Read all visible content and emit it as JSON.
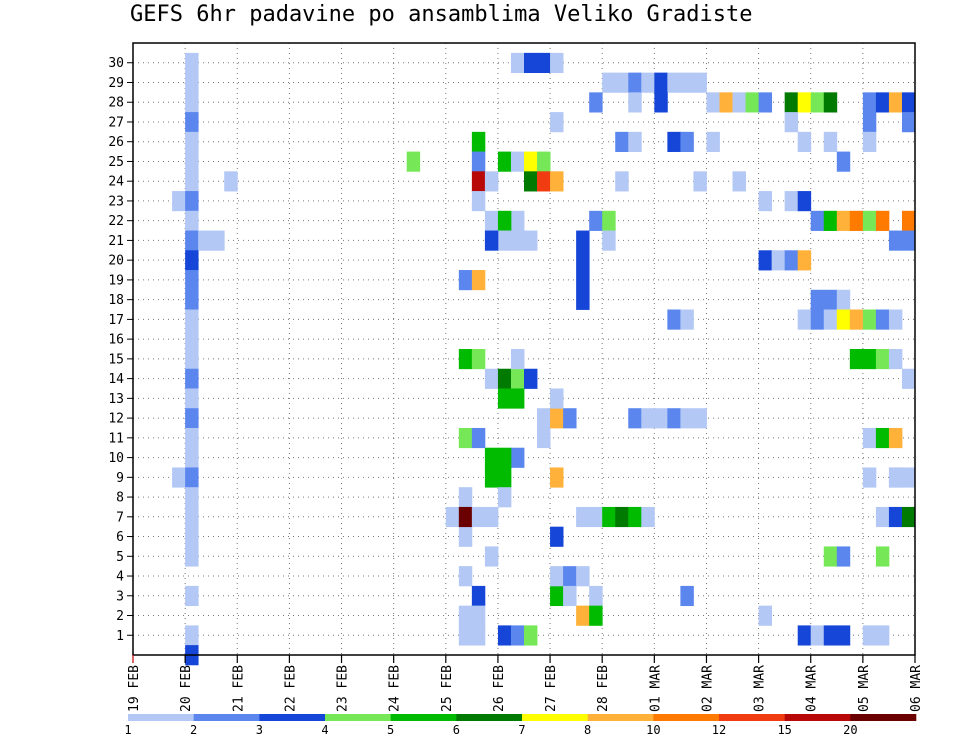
{
  "chart_data": {
    "type": "heatmap",
    "title": "GEFS 6hr padavine po ansamblima Veliko Gradiste",
    "xlabel": "",
    "ylabel": "",
    "x_ticks": [
      "19 FEB",
      "20 FEB",
      "21 FEB",
      "22 FEB",
      "23 FEB",
      "24 FEB",
      "25 FEB",
      "26 FEB",
      "27 FEB",
      "28 FEB",
      "01 MAR",
      "02 MAR",
      "03 MAR",
      "04 MAR",
      "05 MAR",
      "06 MAR"
    ],
    "y_ticks": [
      "1",
      "2",
      "3",
      "4",
      "5",
      "6",
      "7",
      "8",
      "9",
      "10",
      "11",
      "12",
      "13",
      "14",
      "15",
      "16",
      "17",
      "18",
      "19",
      "20",
      "21",
      "22",
      "23",
      "24",
      "25",
      "26",
      "27",
      "28",
      "29",
      "30"
    ],
    "time_steps_per_day": 4,
    "n_steps": 60,
    "n_members": 30,
    "grid": true,
    "legend": {
      "position": "bottom",
      "levels": [
        "1",
        "2",
        "3",
        "4",
        "5",
        "6",
        "7",
        "8",
        "10",
        "12",
        "15",
        "20"
      ],
      "colors": [
        "#b3c8f5",
        "#5a86ee",
        "#1646d8",
        "#76e858",
        "#00bb00",
        "#007a00",
        "#ffff00",
        "#ffb13a",
        "#ff7a00",
        "#f03c10",
        "#b80808",
        "#6b0000"
      ]
    },
    "cells": [
      [
        4,
        30,
        0
      ],
      [
        4,
        29,
        0
      ],
      [
        4,
        28,
        0
      ],
      [
        4,
        27,
        1
      ],
      [
        4,
        26,
        0
      ],
      [
        4,
        25,
        0
      ],
      [
        4,
        24,
        0
      ],
      [
        3,
        23,
        0
      ],
      [
        4,
        23,
        1
      ],
      [
        4,
        22,
        0
      ],
      [
        4,
        21,
        1
      ],
      [
        5,
        21,
        0
      ],
      [
        6,
        21,
        0
      ],
      [
        4,
        20,
        2
      ],
      [
        4,
        19,
        1
      ],
      [
        4,
        18,
        1
      ],
      [
        4,
        17,
        0
      ],
      [
        4,
        16,
        0
      ],
      [
        4,
        15,
        0
      ],
      [
        4,
        14,
        1
      ],
      [
        4,
        13,
        0
      ],
      [
        4,
        12,
        1
      ],
      [
        4,
        11,
        0
      ],
      [
        4,
        10,
        0
      ],
      [
        3,
        9,
        0
      ],
      [
        4,
        9,
        1
      ],
      [
        4,
        8,
        0
      ],
      [
        4,
        7,
        0
      ],
      [
        4,
        6,
        0
      ],
      [
        4,
        5,
        0
      ],
      [
        4,
        3,
        0
      ],
      [
        4,
        1,
        0
      ],
      [
        4,
        0,
        2
      ],
      [
        7,
        24,
        0
      ],
      [
        21,
        25,
        3
      ],
      [
        29,
        22,
        0
      ],
      [
        29,
        21,
        0
      ],
      [
        30,
        21,
        0
      ],
      [
        34,
        21,
        2
      ],
      [
        34,
        20,
        2
      ],
      [
        34,
        19,
        2
      ],
      [
        34,
        18,
        2
      ],
      [
        26,
        1,
        0
      ],
      [
        28,
        1,
        2
      ],
      [
        29,
        1,
        1
      ],
      [
        30,
        1,
        3
      ],
      [
        25,
        1,
        0
      ],
      [
        25,
        2,
        0
      ],
      [
        25,
        4,
        0
      ],
      [
        25,
        6,
        0
      ],
      [
        25,
        7,
        0
      ],
      [
        25,
        8,
        0
      ],
      [
        27,
        5,
        0
      ],
      [
        24,
        7,
        0
      ],
      [
        25,
        7,
        11
      ],
      [
        26,
        7,
        0
      ],
      [
        26,
        26,
        4
      ],
      [
        26,
        25,
        1
      ],
      [
        26,
        24,
        10
      ],
      [
        27,
        24,
        0
      ],
      [
        26,
        23,
        0
      ],
      [
        27,
        22,
        0
      ],
      [
        28,
        22,
        4
      ],
      [
        28,
        21,
        0
      ],
      [
        27,
        21,
        2
      ],
      [
        25,
        19,
        1
      ],
      [
        26,
        19,
        7
      ],
      [
        25,
        15,
        4
      ],
      [
        26,
        15,
        3
      ],
      [
        27,
        14,
        0
      ],
      [
        28,
        14,
        5
      ],
      [
        29,
        14,
        3
      ],
      [
        30,
        14,
        2
      ],
      [
        29,
        15,
        0
      ],
      [
        28,
        13,
        4
      ],
      [
        29,
        13,
        4
      ],
      [
        29,
        10,
        1
      ],
      [
        27,
        10,
        4
      ],
      [
        28,
        10,
        4
      ],
      [
        27,
        9,
        4
      ],
      [
        28,
        9,
        4
      ],
      [
        28,
        8,
        0
      ],
      [
        27,
        7,
        0
      ],
      [
        25,
        11,
        3
      ],
      [
        26,
        11,
        1
      ],
      [
        26,
        3,
        2
      ],
      [
        26,
        2,
        0
      ],
      [
        28,
        25,
        4
      ],
      [
        29,
        25,
        0
      ],
      [
        30,
        25,
        6
      ],
      [
        31,
        25,
        3
      ],
      [
        30,
        24,
        5
      ],
      [
        31,
        24,
        9
      ],
      [
        32,
        24,
        7
      ],
      [
        29,
        30,
        0
      ],
      [
        30,
        30,
        2
      ],
      [
        31,
        30,
        2
      ],
      [
        32,
        30,
        0
      ],
      [
        31,
        12,
        0
      ],
      [
        32,
        12,
        7
      ],
      [
        33,
        12,
        1
      ],
      [
        31,
        11,
        0
      ],
      [
        32,
        9,
        7
      ],
      [
        32,
        27,
        0
      ],
      [
        32,
        13,
        0
      ],
      [
        32,
        6,
        2
      ],
      [
        32,
        3,
        4
      ],
      [
        32,
        4,
        0
      ],
      [
        33,
        4,
        1
      ],
      [
        34,
        4,
        0
      ],
      [
        35,
        3,
        0
      ],
      [
        33,
        3,
        0
      ],
      [
        34,
        2,
        7
      ],
      [
        35,
        2,
        4
      ],
      [
        35,
        7,
        0
      ],
      [
        34,
        7,
        0
      ],
      [
        36,
        7,
        4
      ],
      [
        37,
        7,
        5
      ],
      [
        38,
        7,
        4
      ],
      [
        39,
        7,
        0
      ],
      [
        35,
        28,
        1
      ],
      [
        35,
        22,
        1
      ],
      [
        36,
        22,
        3
      ],
      [
        36,
        21,
        0
      ],
      [
        36,
        29,
        0
      ],
      [
        37,
        29,
        0
      ],
      [
        38,
        29,
        1
      ],
      [
        39,
        29,
        0
      ],
      [
        40,
        29,
        2
      ],
      [
        41,
        29,
        0
      ],
      [
        42,
        29,
        0
      ],
      [
        43,
        29,
        0
      ],
      [
        38,
        28,
        0
      ],
      [
        40,
        28,
        2
      ],
      [
        37,
        26,
        1
      ],
      [
        38,
        26,
        0
      ],
      [
        41,
        26,
        2
      ],
      [
        42,
        26,
        1
      ],
      [
        44,
        26,
        0
      ],
      [
        37,
        24,
        0
      ],
      [
        43,
        24,
        0
      ],
      [
        46,
        24,
        0
      ],
      [
        38,
        12,
        1
      ],
      [
        39,
        12,
        0
      ],
      [
        40,
        12,
        0
      ],
      [
        41,
        12,
        1
      ],
      [
        42,
        12,
        0
      ],
      [
        43,
        12,
        0
      ],
      [
        41,
        17,
        1
      ],
      [
        42,
        17,
        0
      ],
      [
        42,
        3,
        1
      ],
      [
        48,
        2,
        0
      ],
      [
        44,
        28,
        0
      ],
      [
        45,
        28,
        7
      ],
      [
        46,
        28,
        0
      ],
      [
        47,
        28,
        3
      ],
      [
        48,
        28,
        1
      ],
      [
        50,
        28,
        5
      ],
      [
        51,
        28,
        6
      ],
      [
        52,
        28,
        3
      ],
      [
        53,
        28,
        5
      ],
      [
        56,
        28,
        1
      ],
      [
        57,
        28,
        2
      ],
      [
        58,
        28,
        7
      ],
      [
        59,
        28,
        2
      ],
      [
        48,
        23,
        0
      ],
      [
        50,
        23,
        0
      ],
      [
        51,
        23,
        2
      ],
      [
        48,
        20,
        2
      ],
      [
        49,
        20,
        0
      ],
      [
        50,
        20,
        1
      ],
      [
        51,
        20,
        7
      ],
      [
        50,
        27,
        0
      ],
      [
        56,
        27,
        1
      ],
      [
        59,
        27,
        1
      ],
      [
        51,
        26,
        0
      ],
      [
        53,
        26,
        0
      ],
      [
        56,
        26,
        0
      ],
      [
        51,
        17,
        0
      ],
      [
        52,
        18,
        1
      ],
      [
        53,
        18,
        1
      ],
      [
        54,
        18,
        0
      ],
      [
        52,
        17,
        1
      ],
      [
        53,
        17,
        0
      ],
      [
        54,
        17,
        6
      ],
      [
        55,
        17,
        7
      ],
      [
        56,
        17,
        3
      ],
      [
        57,
        17,
        1
      ],
      [
        58,
        17,
        0
      ],
      [
        52,
        22,
        1
      ],
      [
        53,
        22,
        4
      ],
      [
        54,
        22,
        7
      ],
      [
        55,
        22,
        8
      ],
      [
        56,
        22,
        3
      ],
      [
        57,
        22,
        8
      ],
      [
        59,
        22,
        8
      ],
      [
        58,
        21,
        1
      ],
      [
        59,
        21,
        1
      ],
      [
        54,
        25,
        1
      ],
      [
        55,
        15,
        4
      ],
      [
        56,
        15,
        4
      ],
      [
        57,
        15,
        3
      ],
      [
        58,
        15,
        0
      ],
      [
        59,
        14,
        0
      ],
      [
        56,
        11,
        0
      ],
      [
        57,
        11,
        4
      ],
      [
        58,
        11,
        7
      ],
      [
        56,
        9,
        0
      ],
      [
        58,
        9,
        0
      ],
      [
        59,
        9,
        0
      ],
      [
        57,
        7,
        0
      ],
      [
        58,
        7,
        2
      ],
      [
        59,
        7,
        5
      ],
      [
        53,
        5,
        3
      ],
      [
        54,
        5,
        1
      ],
      [
        57,
        5,
        3
      ],
      [
        51,
        1,
        2
      ],
      [
        52,
        1,
        0
      ],
      [
        53,
        1,
        2
      ],
      [
        54,
        1,
        2
      ],
      [
        56,
        1,
        0
      ],
      [
        57,
        1,
        0
      ],
      [
        58,
        9,
        0
      ]
    ]
  }
}
